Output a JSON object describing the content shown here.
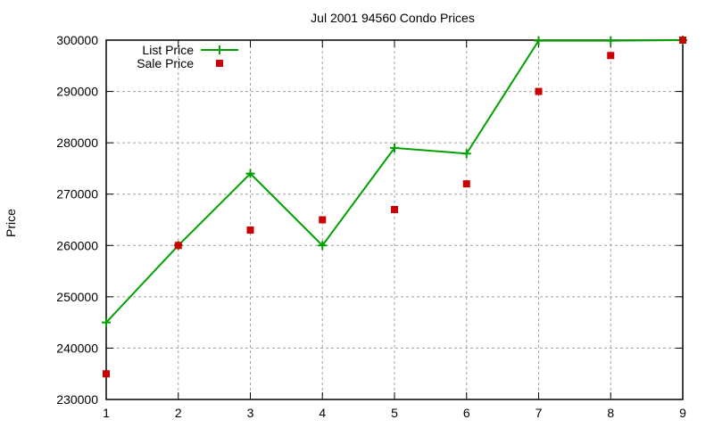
{
  "chart_data": {
    "type": "line",
    "title": "Jul 2001 94560 Condo Prices",
    "xlabel": "",
    "ylabel": "Price",
    "x": [
      1,
      2,
      3,
      4,
      5,
      6,
      7,
      8,
      9
    ],
    "xlim": [
      1,
      9
    ],
    "ylim": [
      230000,
      300000
    ],
    "xticks": [
      1,
      2,
      3,
      4,
      5,
      6,
      7,
      8,
      9
    ],
    "yticks": [
      230000,
      240000,
      250000,
      260000,
      270000,
      280000,
      290000,
      300000
    ],
    "grid": true,
    "legend_position": "top-left",
    "series": [
      {
        "name": "List Price",
        "style": "linespoints",
        "color": "#00a000",
        "marker": "plus",
        "values": [
          245000,
          260000,
          274000,
          260000,
          279000,
          277900,
          299900,
          299900,
          300000
        ]
      },
      {
        "name": "Sale Price",
        "style": "points",
        "color": "#cc0000",
        "marker": "square",
        "values": [
          235000,
          260000,
          263000,
          265000,
          267000,
          272000,
          290000,
          297000,
          300000
        ]
      }
    ]
  }
}
